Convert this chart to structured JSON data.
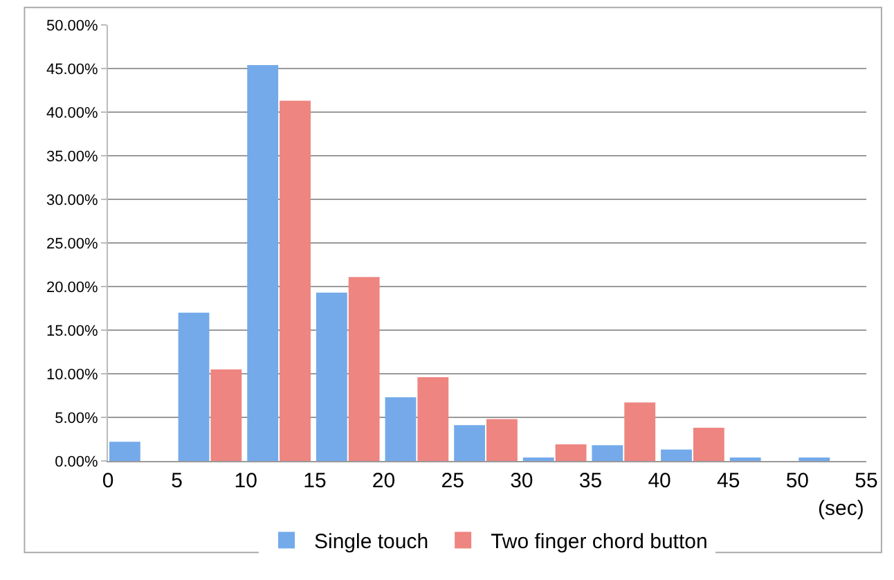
{
  "chart_data": {
    "type": "histogram",
    "xlabel": "(sec)",
    "bins": [
      0,
      5,
      10,
      15,
      20,
      25,
      30,
      35,
      40,
      45,
      50,
      55
    ],
    "series": [
      {
        "name": "Single touch",
        "color": "#74aaea",
        "values": [
          2.2,
          17,
          45.4,
          19.3,
          7.3,
          4.1,
          0.4,
          1.8,
          1.3,
          0.4,
          0.4
        ]
      },
      {
        "name": "Two finger chord button",
        "color": "#ee8580",
        "values": [
          0,
          10.5,
          41.3,
          21.1,
          9.6,
          4.8,
          1.9,
          6.7,
          3.8,
          0,
          0
        ]
      }
    ],
    "xlim": [
      0,
      55
    ],
    "xticks": [
      0,
      5,
      10,
      15,
      20,
      25,
      30,
      35,
      40,
      45,
      50,
      55
    ],
    "ylim": [
      0,
      50
    ],
    "yticks": [
      {
        "value": 0,
        "label": "0.00%"
      },
      {
        "value": 5,
        "label": "5.00%"
      },
      {
        "value": 10,
        "label": "10.00%"
      },
      {
        "value": 15,
        "label": "15.00%"
      },
      {
        "value": 20,
        "label": "20.00%"
      },
      {
        "value": 25,
        "label": "25.00%"
      },
      {
        "value": 30,
        "label": "30.00%"
      },
      {
        "value": 35,
        "label": "35.00%"
      },
      {
        "value": 40,
        "label": "40.00%"
      },
      {
        "value": 45,
        "label": "45.00%"
      },
      {
        "value": 50,
        "label": "50.00%"
      }
    ],
    "grid": "y",
    "legend": "bottom"
  }
}
